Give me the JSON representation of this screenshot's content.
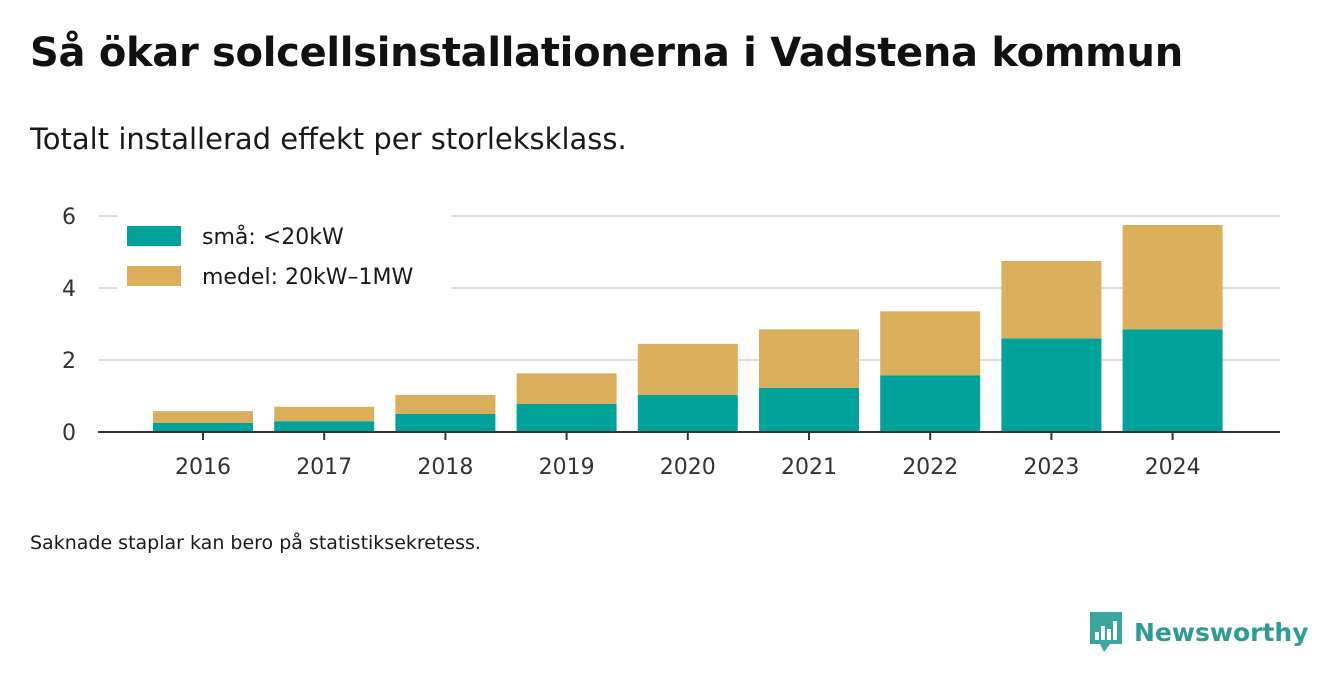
{
  "title": "Så ökar solcellsinstallationerna i Vadstena kommun",
  "subtitle": "Totalt installerad effekt per storleksklass.",
  "note": "Saknade staplar kan bero på statistiksekretess.",
  "brand": {
    "name": "Newsworthy",
    "icon": "newsworthy-logo-icon"
  },
  "colors": {
    "small": "#00a39a",
    "medium": "#dbae5c",
    "grid": "#dddddd",
    "axis": "#333333"
  },
  "chart_data": {
    "type": "bar",
    "stacked": true,
    "categories": [
      "2016",
      "2017",
      "2018",
      "2019",
      "2020",
      "2021",
      "2022",
      "2023",
      "2024"
    ],
    "series": [
      {
        "name": "små: <20kW",
        "values": [
          0.25,
          0.3,
          0.5,
          0.78,
          1.03,
          1.23,
          1.57,
          2.6,
          2.85
        ]
      },
      {
        "name": "medel: 20kW–1MW",
        "values": [
          0.33,
          0.4,
          0.53,
          0.85,
          1.42,
          1.62,
          1.78,
          2.15,
          2.9
        ]
      }
    ],
    "yticks": [
      0,
      2,
      4,
      6
    ],
    "ylim": [
      0,
      6
    ],
    "grid": true,
    "legend": "top-left"
  }
}
